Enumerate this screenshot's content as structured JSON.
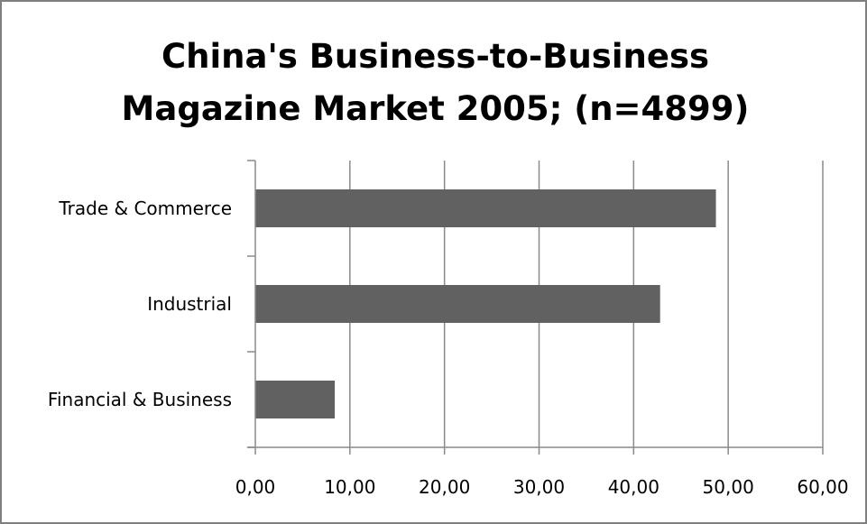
{
  "chart_data": {
    "type": "bar",
    "orientation": "horizontal",
    "title_lines": [
      "China's Business-to-Business",
      "Magazine Market 2005; (n=4899)"
    ],
    "categories": [
      "Trade & Commerce",
      "Industrial",
      "Financial & Business"
    ],
    "values": [
      48.7,
      42.8,
      8.4
    ],
    "xlim": [
      0,
      60
    ],
    "x_ticks": [
      "0,00",
      "10,00",
      "20,00",
      "30,00",
      "40,00",
      "50,00",
      "60,00"
    ],
    "x_tick_values": [
      0,
      10,
      20,
      30,
      40,
      50,
      60
    ],
    "grid": "vertical",
    "legend": "none",
    "colors": {
      "bar": "#616161",
      "grid": "#8a8a8a",
      "axis": "#8a8a8a",
      "frame": "#7f7f7f"
    }
  }
}
